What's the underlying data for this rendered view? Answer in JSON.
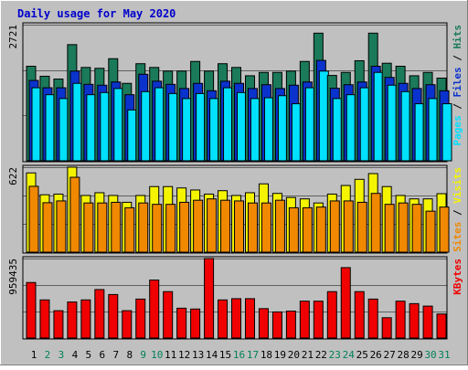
{
  "chart_data": {
    "type": "bar",
    "title": "Daily usage for May 2020",
    "categories": [
      "1",
      "2",
      "3",
      "4",
      "5",
      "6",
      "7",
      "8",
      "9",
      "10",
      "11",
      "12",
      "13",
      "14",
      "15",
      "16",
      "17",
      "18",
      "19",
      "20",
      "21",
      "22",
      "23",
      "24",
      "25",
      "26",
      "27",
      "28",
      "29",
      "30",
      "31"
    ],
    "weekend_days": [
      "2",
      "3",
      "9",
      "10",
      "16",
      "17",
      "23",
      "24",
      "30",
      "31"
    ],
    "panels": [
      {
        "id": "requests",
        "ylabel_parts": [
          "Pages",
          "Files",
          "Hits"
        ],
        "max_label": "2721",
        "ylim": [
          0,
          2721
        ],
        "series": [
          {
            "name": "Hits",
            "color": "#1a7a5a",
            "values": [
              1890,
              1690,
              1634,
              2322,
              1866,
              1849,
              2041,
              1548,
              1941,
              1866,
              1793,
              1793,
              1986,
              1793,
              1941,
              1866,
              1700,
              1767,
              1767,
              1793,
              1986,
              2551,
              1706,
              1767,
              2000,
              2551,
              1950,
              1890,
              1700,
              1767,
              1653
            ]
          },
          {
            "name": "Files",
            "color": "#0a32cc",
            "values": [
              1606,
              1460,
              1460,
              1793,
              1528,
              1511,
              1575,
              1321,
              1730,
              1591,
              1528,
              1445,
              1548,
              1400,
              1591,
              1548,
              1445,
              1521,
              1445,
              1511,
              1575,
              2007,
              1450,
              1521,
              1575,
              1890,
              1667,
              1548,
              1445,
              1521,
              1400
            ]
          },
          {
            "name": "Pages",
            "color": "#00e0ff",
            "values": [
              1460,
              1321,
              1244,
              1548,
              1321,
              1364,
              1445,
              1016,
              1382,
              1460,
              1344,
              1244,
              1344,
              1244,
              1460,
              1364,
              1244,
              1260,
              1301,
              1140,
              1460,
              1793,
              1244,
              1321,
              1460,
              1767,
              1511,
              1382,
              1140,
              1244,
              1140
            ]
          }
        ]
      },
      {
        "id": "visitors",
        "ylabel_parts": [
          "Sites",
          "Visits"
        ],
        "max_label": "622",
        "ylim": [
          0,
          622
        ],
        "series": [
          {
            "name": "Visits",
            "color": "#f4f400",
            "values": [
              580,
              420,
              425,
              622,
              415,
              435,
              415,
              365,
              415,
              480,
              480,
              470,
              455,
              425,
              450,
              415,
              435,
              500,
              430,
              400,
              390,
              360,
              425,
              488,
              533,
              575,
              480,
              415,
              390,
              390,
              428
            ]
          },
          {
            "name": "Sites",
            "color": "#f08800",
            "values": [
              482,
              362,
              375,
              548,
              360,
              360,
              365,
              325,
              360,
              350,
              350,
              365,
              380,
              390,
              380,
              375,
              360,
              360,
              380,
              325,
              325,
              330,
              375,
              375,
              365,
              430,
              350,
              360,
              350,
              300,
              330
            ]
          }
        ]
      },
      {
        "id": "volume",
        "ylabel_parts": [
          "KBytes"
        ],
        "max_label": "959435",
        "ylim": [
          0,
          959435
        ],
        "series": [
          {
            "name": "KBytes",
            "color": "#f00000",
            "values": [
              670000,
              460000,
              330000,
              435000,
              460000,
              585000,
              525000,
              330000,
              470000,
              700000,
              560000,
              360000,
              350000,
              959435,
              460000,
              475000,
              475000,
              355000,
              315000,
              325000,
              445000,
              445000,
              560000,
              850000,
              560000,
              470000,
              245000,
              445000,
              415000,
              385000,
              290000
            ]
          }
        ]
      }
    ]
  }
}
